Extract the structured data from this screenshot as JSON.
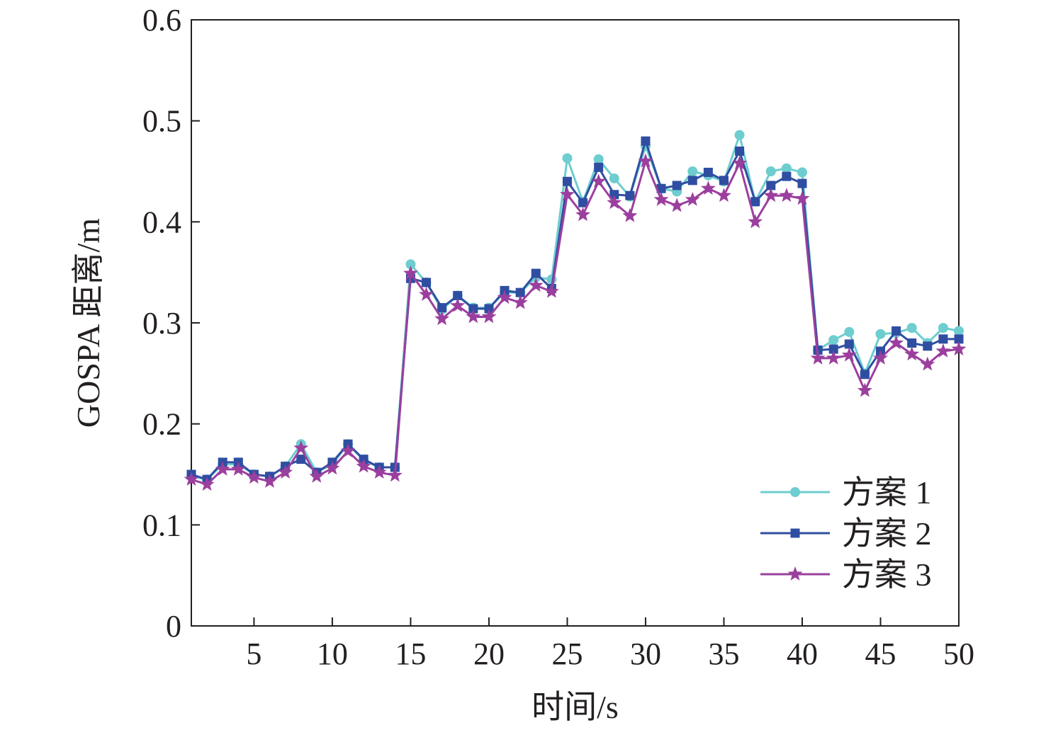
{
  "chart_data": {
    "type": "line",
    "xlabel": "时间/s",
    "ylabel": "GOSPA 距离/m",
    "xlim": [
      1,
      50
    ],
    "ylim": [
      0,
      0.6
    ],
    "xticks": [
      5,
      10,
      15,
      20,
      25,
      30,
      35,
      40,
      45,
      50
    ],
    "yticks": [
      0,
      0.1,
      0.2,
      0.3,
      0.4,
      0.5,
      0.6
    ],
    "grid": false,
    "legend_position": "bottom-right",
    "x": [
      1,
      2,
      3,
      4,
      5,
      6,
      7,
      8,
      9,
      10,
      11,
      12,
      13,
      14,
      15,
      16,
      17,
      18,
      19,
      20,
      21,
      22,
      23,
      24,
      25,
      26,
      27,
      28,
      29,
      30,
      31,
      32,
      33,
      34,
      35,
      36,
      37,
      38,
      39,
      40,
      41,
      42,
      43,
      44,
      45,
      46,
      47,
      48,
      49,
      50
    ],
    "series": [
      {
        "name": "方案 1",
        "color": "#6dcdcf",
        "marker": "circle",
        "values": [
          0.148,
          0.145,
          0.16,
          0.16,
          0.15,
          0.148,
          0.158,
          0.18,
          0.152,
          0.16,
          0.18,
          0.164,
          0.157,
          0.157,
          0.358,
          0.34,
          0.313,
          0.327,
          0.315,
          0.315,
          0.33,
          0.33,
          0.345,
          0.343,
          0.463,
          0.42,
          0.462,
          0.443,
          0.425,
          0.475,
          0.433,
          0.43,
          0.45,
          0.446,
          0.44,
          0.486,
          0.42,
          0.45,
          0.453,
          0.449,
          0.273,
          0.283,
          0.291,
          0.25,
          0.289,
          0.29,
          0.295,
          0.28,
          0.295,
          0.292
        ]
      },
      {
        "name": "方案 2",
        "color": "#2f4ea2",
        "marker": "square",
        "values": [
          0.15,
          0.145,
          0.162,
          0.162,
          0.15,
          0.148,
          0.158,
          0.165,
          0.152,
          0.162,
          0.18,
          0.165,
          0.157,
          0.157,
          0.344,
          0.34,
          0.315,
          0.327,
          0.314,
          0.314,
          0.332,
          0.33,
          0.349,
          0.334,
          0.44,
          0.419,
          0.454,
          0.427,
          0.426,
          0.48,
          0.433,
          0.436,
          0.441,
          0.449,
          0.441,
          0.47,
          0.42,
          0.436,
          0.445,
          0.438,
          0.273,
          0.274,
          0.279,
          0.249,
          0.272,
          0.292,
          0.28,
          0.277,
          0.284,
          0.284
        ]
      },
      {
        "name": "方案 3",
        "color": "#9b3f9e",
        "marker": "star",
        "values": [
          0.145,
          0.14,
          0.155,
          0.155,
          0.147,
          0.143,
          0.152,
          0.176,
          0.148,
          0.156,
          0.173,
          0.158,
          0.152,
          0.149,
          0.349,
          0.328,
          0.304,
          0.317,
          0.306,
          0.306,
          0.325,
          0.32,
          0.337,
          0.331,
          0.427,
          0.407,
          0.44,
          0.419,
          0.406,
          0.46,
          0.422,
          0.416,
          0.422,
          0.433,
          0.426,
          0.458,
          0.4,
          0.426,
          0.426,
          0.423,
          0.265,
          0.265,
          0.268,
          0.233,
          0.265,
          0.28,
          0.269,
          0.259,
          0.272,
          0.274
        ]
      }
    ]
  }
}
